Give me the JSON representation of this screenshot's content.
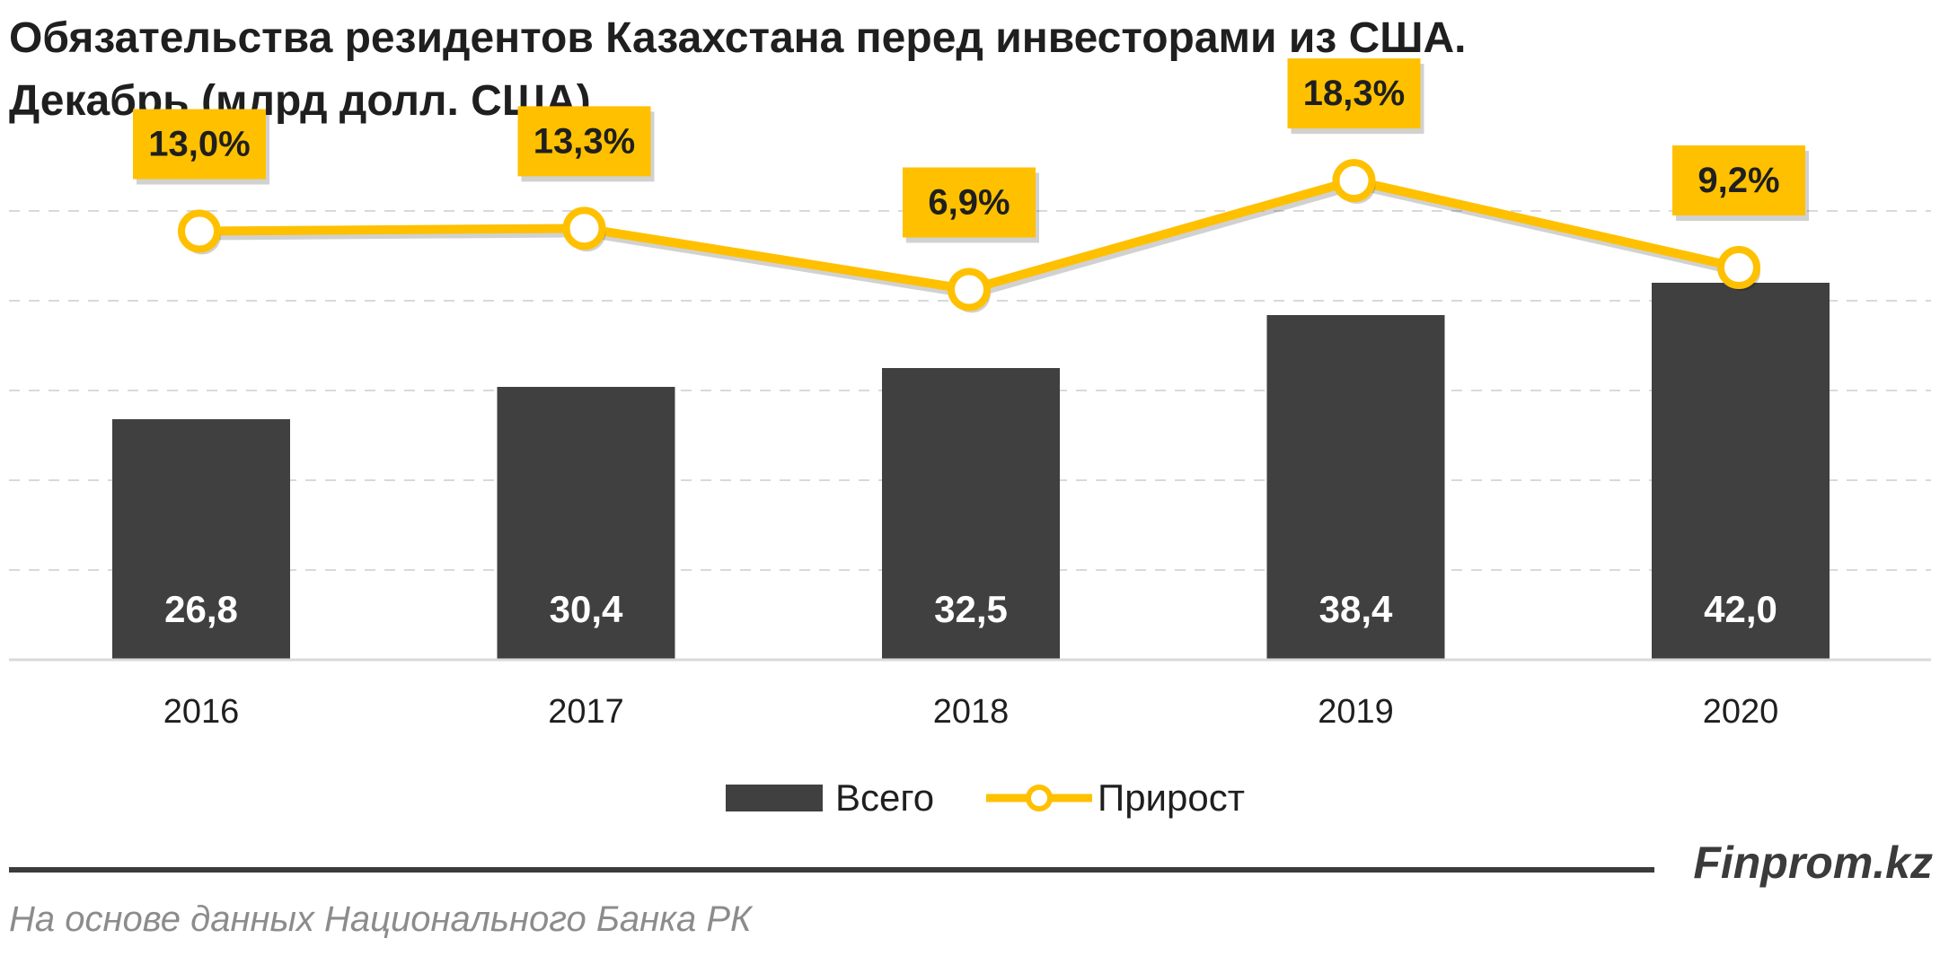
{
  "chart_data": {
    "type": "bar",
    "title_line1": "Обязательства резидентов Казахстана перед инвесторами из США.",
    "title_line2": "Декабрь (млрд долл. США)",
    "categories": [
      "2016",
      "2017",
      "2018",
      "2019",
      "2020"
    ],
    "series": [
      {
        "name": "Всего",
        "type": "bar",
        "values": [
          26.8,
          30.4,
          32.5,
          38.4,
          42.0
        ],
        "labels": [
          "26,8",
          "30,4",
          "32,5",
          "38,4",
          "42,0"
        ],
        "color": "#404040"
      },
      {
        "name": "Прирост",
        "type": "line",
        "values": [
          13.0,
          13.3,
          6.9,
          18.3,
          9.2
        ],
        "labels": [
          "13,0%",
          "13,3%",
          "6,9%",
          "18,3%",
          "9,2%"
        ],
        "color": "#FFC000"
      }
    ],
    "ylim": [
      0,
      50
    ],
    "grid": true,
    "legend_position": "bottom"
  },
  "footer": {
    "brand": "Finprom.kz",
    "source": "На основе данных Национального Банка РК"
  }
}
